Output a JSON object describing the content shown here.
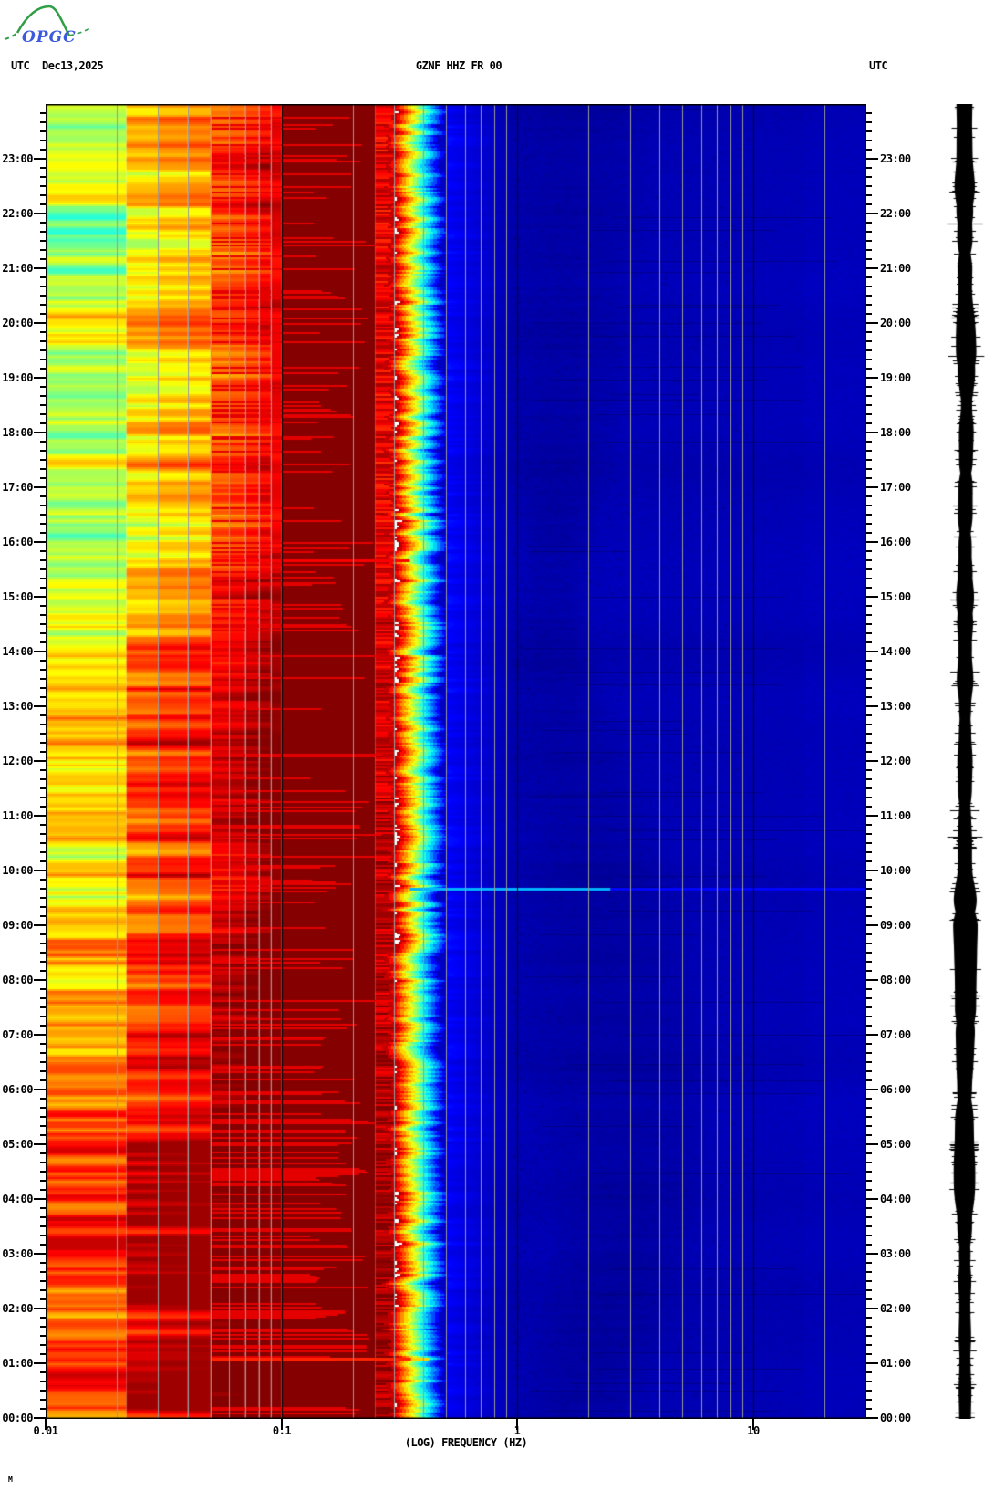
{
  "header": {
    "logo_text": "OPGC",
    "utc_label_left": "UTC",
    "date": "Dec13,2025",
    "title": "GZNF HHZ FR 00",
    "utc_label_right": "UTC"
  },
  "chart_data": {
    "type": "heatmap",
    "title": "GZNF HHZ FR 00",
    "xlabel": "(LOG) FREQUENCY (HZ)",
    "x_scale": "log10",
    "x_range_hz": [
      0.01,
      30
    ],
    "x_tick_values": [
      0.01,
      0.1,
      1,
      10
    ],
    "x_tick_labels": [
      "0.01",
      "0.1",
      "1",
      "10"
    ],
    "y_axis": "UTC time of day, 00:00 at bottom to 24:00 at top",
    "y_major_tick_minutes": 60,
    "y_minor_tick_minutes": 10,
    "y_tick_labels": [
      "23:00",
      "22:00",
      "21:00",
      "20:00",
      "19:00",
      "18:00",
      "17:00",
      "16:00",
      "15:00",
      "14:00",
      "13:00",
      "12:00",
      "11:00",
      "10:00",
      "09:00",
      "08:00",
      "07:00",
      "06:00",
      "05:00",
      "04:00",
      "03:00",
      "02:00",
      "01:00",
      "00:00"
    ],
    "colormap": "jet",
    "palette": {
      "max_power": "#7f0000",
      "red": "#e60000",
      "orange": "#ff8000",
      "yellow": "#ffff00",
      "green": "#80ff80",
      "cyan": "#1affe4",
      "blue": "#0033ff",
      "deep_blue": "#0000a8",
      "navy": "#000080"
    },
    "frequency_bands": [
      {
        "hz": [
          0.01,
          0.022
        ],
        "pattern": "horizontal stripes; red/orange 00-07h, orange/yellow 07-15h, yellow-green with cyan 15-24h"
      },
      {
        "hz": [
          0.022,
          0.05
        ],
        "pattern": "striped, one step hotter than previous band"
      },
      {
        "hz": [
          0.05,
          0.09
        ],
        "pattern": "dark red with red/orange stripes"
      },
      {
        "hz": [
          0.09,
          0.3
        ],
        "pattern": "solid saturated dark maroon (maximum power)"
      },
      {
        "hz": [
          0.3,
          0.5
        ],
        "pattern": "steep jagged rolloff red to orange to yellow to cyan"
      },
      {
        "hz": [
          0.5,
          30
        ],
        "pattern": "low power deep blue with darker navy speckled cloud near 1.3-4.5 Hz"
      }
    ],
    "events": [
      {
        "time_utc": "09:40",
        "hz": [
          0.35,
          30
        ],
        "appearance": "light-blue broadband horizontal line",
        "value": 0.3
      },
      {
        "time_utc": "15:40",
        "hz": [
          0.05,
          0.35
        ],
        "appearance": "red horizontal line",
        "value": 0.88
      },
      {
        "time_utc": "01:05",
        "hz": [
          0.05,
          0.42
        ],
        "appearance": "orange-red horizontal line",
        "value": 0.84
      }
    ],
    "gridlines": {
      "minor_color": "#9a9a9a",
      "decade_color": "#000000",
      "orientation": "vertical lines at 2-9 multiples of each decade, black lines at 0.1, 1 and 10 Hz"
    }
  },
  "side_trace": {
    "description": "24-hour vertical seismogram amplitude trace",
    "color": "#000000"
  },
  "footer": {
    "mark": "M"
  }
}
